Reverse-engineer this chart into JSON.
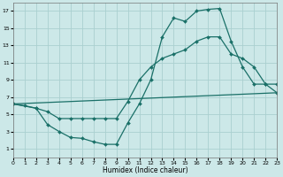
{
  "xlabel": "Humidex (Indice chaleur)",
  "bg_color": "#cce8e8",
  "grid_color": "#aad0d0",
  "line_color": "#1a7068",
  "xlim": [
    0,
    23
  ],
  "ylim": [
    0,
    18
  ],
  "xticks": [
    0,
    1,
    2,
    3,
    4,
    5,
    6,
    7,
    8,
    9,
    10,
    11,
    12,
    13,
    14,
    15,
    16,
    17,
    18,
    19,
    20,
    21,
    22,
    23
  ],
  "yticks": [
    1,
    3,
    5,
    7,
    9,
    11,
    13,
    15,
    17
  ],
  "line1_x": [
    0,
    1,
    2,
    3,
    4,
    5,
    6,
    7,
    8,
    9,
    10,
    11,
    12,
    13,
    14,
    15,
    16,
    17,
    18,
    19,
    20,
    21,
    22,
    23
  ],
  "line1_y": [
    6.2,
    6.0,
    5.7,
    5.3,
    4.5,
    4.5,
    4.5,
    4.5,
    4.5,
    4.5,
    6.5,
    9.0,
    10.5,
    11.5,
    12.0,
    12.5,
    13.5,
    14.0,
    14.0,
    12.0,
    11.5,
    10.5,
    8.5,
    7.5
  ],
  "line2_x": [
    0,
    2,
    3,
    4,
    5,
    6,
    7,
    8,
    9,
    10,
    11,
    12,
    13,
    14,
    15,
    16,
    17,
    18,
    19,
    20,
    21,
    22,
    23
  ],
  "line2_y": [
    6.2,
    5.7,
    3.8,
    3.0,
    2.3,
    2.2,
    1.8,
    1.5,
    1.5,
    4.0,
    6.2,
    9.0,
    14.0,
    16.2,
    15.8,
    17.0,
    17.2,
    17.3,
    13.5,
    10.5,
    8.5,
    8.5,
    8.5
  ],
  "line3_x": [
    0,
    23
  ],
  "line3_y": [
    6.2,
    7.5
  ]
}
